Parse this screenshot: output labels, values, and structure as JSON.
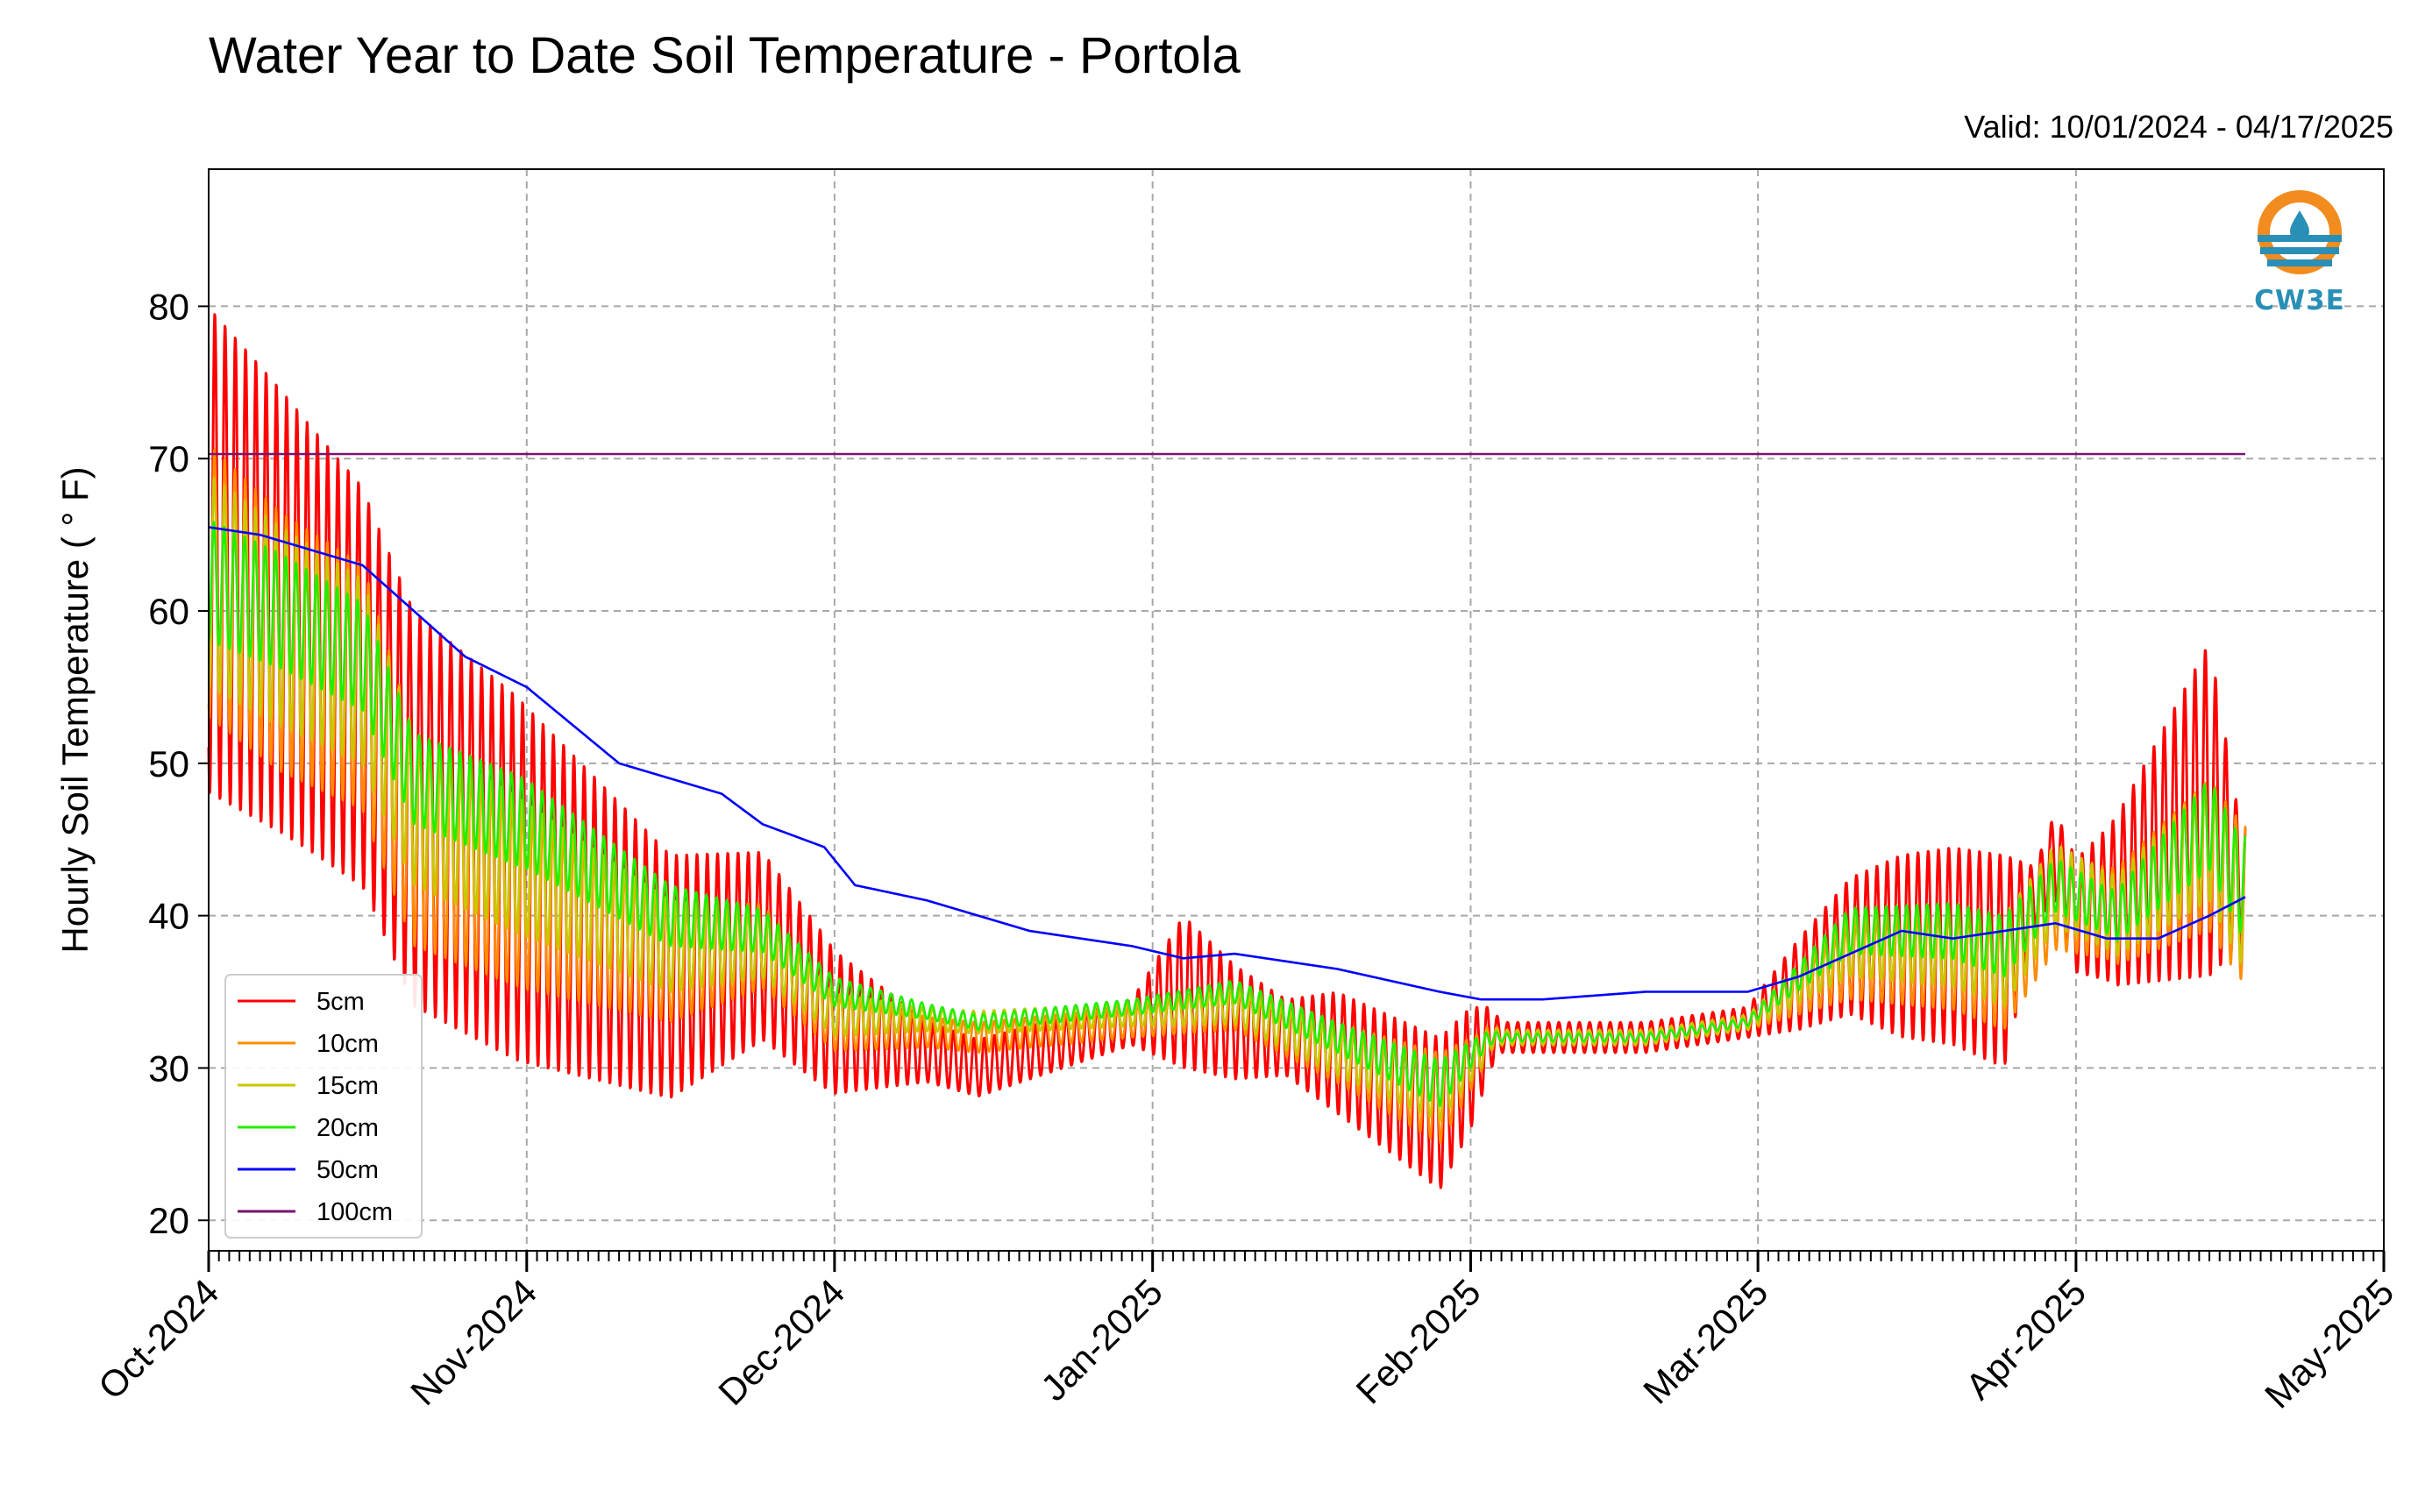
{
  "chart_data": {
    "type": "line",
    "title": "Water Year to Date Soil Temperature - Portola",
    "subtitle": "Valid: 10/01/2024 - 04/17/2025",
    "ylabel": "Hourly Soil Temperature ( ° F)",
    "xlabel": "",
    "ylim": [
      18,
      89
    ],
    "yticks": [
      20,
      30,
      40,
      50,
      60,
      70,
      80
    ],
    "xlim": [
      "2024-10-01",
      "2025-05-01"
    ],
    "xticks": [
      {
        "date": "2024-10-01",
        "label": "Oct-2024"
      },
      {
        "date": "2024-11-01",
        "label": "Nov-2024"
      },
      {
        "date": "2024-12-01",
        "label": "Dec-2024"
      },
      {
        "date": "2025-01-01",
        "label": "Jan-2025"
      },
      {
        "date": "2025-02-01",
        "label": "Feb-2025"
      },
      {
        "date": "2025-03-01",
        "label": "Mar-2025"
      },
      {
        "date": "2025-04-01",
        "label": "Apr-2025"
      },
      {
        "date": "2025-05-01",
        "label": "May-2025"
      }
    ],
    "grid": true,
    "legend_position": "lower-left",
    "logo": {
      "text": "CW3E",
      "colors": [
        "#f28c1e",
        "#2a8fb6"
      ]
    },
    "series": [
      {
        "name": "5cm",
        "color": "#ff0000",
        "mean": [
          [
            0,
            64
          ],
          [
            7,
            60
          ],
          [
            15,
            55
          ],
          [
            20,
            47
          ],
          [
            31,
            42
          ],
          [
            45,
            36
          ],
          [
            54,
            38
          ],
          [
            61,
            33
          ],
          [
            75,
            30
          ],
          [
            90,
            33
          ],
          [
            95,
            35
          ],
          [
            100,
            33
          ],
          [
            110,
            31
          ],
          [
            120,
            27
          ],
          [
            124,
            31
          ],
          [
            125,
            32
          ],
          [
            140,
            32
          ],
          [
            150,
            33
          ],
          [
            160,
            38
          ],
          [
            170,
            38
          ],
          [
            175,
            37
          ],
          [
            180,
            44
          ],
          [
            182,
            40
          ],
          [
            186,
            41
          ],
          [
            195,
            47
          ],
          [
            198,
            42
          ],
          [
            210,
            48
          ],
          [
            213,
            46
          ],
          [
            220,
            52
          ],
          [
            228,
            54
          ]
        ],
        "amp": [
          [
            0,
            32
          ],
          [
            10,
            28
          ],
          [
            16,
            26
          ],
          [
            20,
            26
          ],
          [
            30,
            24
          ],
          [
            45,
            16
          ],
          [
            60,
            10
          ],
          [
            70,
            4
          ],
          [
            90,
            3
          ],
          [
            95,
            10
          ],
          [
            105,
            5
          ],
          [
            110,
            8
          ],
          [
            120,
            10
          ],
          [
            123,
            8
          ],
          [
            126,
            2
          ],
          [
            150,
            2
          ],
          [
            155,
            6
          ],
          [
            165,
            12
          ],
          [
            175,
            14
          ],
          [
            178,
            4
          ],
          [
            185,
            10
          ],
          [
            195,
            22
          ],
          [
            198,
            8
          ],
          [
            210,
            24
          ],
          [
            212,
            10
          ],
          [
            215,
            20
          ],
          [
            228,
            26
          ]
        ]
      },
      {
        "name": "10cm",
        "color": "#ff8c00",
        "mean": [
          [
            0,
            62
          ],
          [
            7,
            58
          ],
          [
            15,
            55
          ],
          [
            20,
            45
          ],
          [
            31,
            41
          ],
          [
            45,
            37
          ],
          [
            54,
            38
          ],
          [
            61,
            33
          ],
          [
            75,
            32
          ],
          [
            90,
            33
          ],
          [
            100,
            34
          ],
          [
            110,
            31
          ],
          [
            120,
            28
          ],
          [
            124,
            31
          ],
          [
            125,
            32
          ],
          [
            140,
            32
          ],
          [
            150,
            33
          ],
          [
            160,
            37
          ],
          [
            170,
            37
          ],
          [
            175,
            36
          ],
          [
            180,
            41
          ],
          [
            186,
            40
          ],
          [
            195,
            44
          ],
          [
            198,
            41
          ],
          [
            210,
            45
          ],
          [
            213,
            44
          ],
          [
            220,
            48
          ],
          [
            228,
            52
          ]
        ],
        "amp": [
          [
            0,
            18
          ],
          [
            16,
            16
          ],
          [
            20,
            14
          ],
          [
            30,
            12
          ],
          [
            45,
            8
          ],
          [
            60,
            4
          ],
          [
            70,
            2
          ],
          [
            90,
            2
          ],
          [
            110,
            4
          ],
          [
            120,
            6
          ],
          [
            126,
            1
          ],
          [
            150,
            1
          ],
          [
            160,
            5
          ],
          [
            175,
            7
          ],
          [
            185,
            6
          ],
          [
            195,
            10
          ],
          [
            210,
            12
          ],
          [
            228,
            14
          ]
        ]
      },
      {
        "name": "15cm",
        "color": "#c8c800",
        "mean": [
          [
            0,
            62
          ],
          [
            7,
            59
          ],
          [
            15,
            56
          ],
          [
            20,
            47
          ],
          [
            31,
            43
          ],
          [
            45,
            38
          ],
          [
            54,
            38
          ],
          [
            61,
            33.5
          ],
          [
            75,
            33
          ],
          [
            90,
            33.5
          ],
          [
            100,
            34
          ],
          [
            110,
            31
          ],
          [
            120,
            28.5
          ],
          [
            124,
            31
          ],
          [
            125,
            32
          ],
          [
            140,
            32
          ],
          [
            150,
            33
          ],
          [
            160,
            38
          ],
          [
            170,
            38
          ],
          [
            175,
            37
          ],
          [
            180,
            42
          ],
          [
            186,
            40
          ],
          [
            195,
            45
          ],
          [
            198,
            41
          ],
          [
            210,
            45
          ],
          [
            213,
            44
          ],
          [
            220,
            48
          ],
          [
            228,
            51
          ]
        ],
        "amp": [
          [
            0,
            14
          ],
          [
            16,
            12
          ],
          [
            20,
            10
          ],
          [
            30,
            9
          ],
          [
            45,
            6
          ],
          [
            60,
            3
          ],
          [
            70,
            1.5
          ],
          [
            90,
            1.5
          ],
          [
            110,
            3
          ],
          [
            120,
            4
          ],
          [
            126,
            1
          ],
          [
            150,
            1
          ],
          [
            160,
            4
          ],
          [
            175,
            6
          ],
          [
            185,
            5
          ],
          [
            195,
            8
          ],
          [
            210,
            9
          ],
          [
            228,
            11
          ]
        ]
      },
      {
        "name": "20cm",
        "color": "#22ee00",
        "mean": [
          [
            0,
            62
          ],
          [
            7,
            60
          ],
          [
            15,
            57
          ],
          [
            20,
            49
          ],
          [
            31,
            46
          ],
          [
            45,
            40
          ],
          [
            54,
            39
          ],
          [
            61,
            35
          ],
          [
            75,
            33
          ],
          [
            90,
            34
          ],
          [
            100,
            35
          ],
          [
            110,
            32
          ],
          [
            120,
            29
          ],
          [
            124,
            31.5
          ],
          [
            125,
            32
          ],
          [
            140,
            32
          ],
          [
            150,
            33
          ],
          [
            160,
            39
          ],
          [
            170,
            39
          ],
          [
            175,
            38
          ],
          [
            180,
            42
          ],
          [
            186,
            40
          ],
          [
            195,
            46
          ],
          [
            198,
            42
          ],
          [
            210,
            45
          ],
          [
            213,
            44
          ],
          [
            220,
            48
          ],
          [
            228,
            50
          ]
        ],
        "amp": [
          [
            0,
            8
          ],
          [
            16,
            7
          ],
          [
            20,
            6
          ],
          [
            30,
            6
          ],
          [
            45,
            4
          ],
          [
            60,
            2
          ],
          [
            70,
            1
          ],
          [
            90,
            1
          ],
          [
            110,
            2
          ],
          [
            120,
            3
          ],
          [
            126,
            0.5
          ],
          [
            150,
            0.5
          ],
          [
            160,
            3
          ],
          [
            175,
            4
          ],
          [
            185,
            3
          ],
          [
            195,
            6
          ],
          [
            210,
            7
          ],
          [
            228,
            8
          ]
        ]
      },
      {
        "name": "50cm",
        "color": "#0000ff",
        "mean": [
          [
            0,
            65.5
          ],
          [
            5,
            65
          ],
          [
            15,
            63
          ],
          [
            20,
            60
          ],
          [
            25,
            57
          ],
          [
            31,
            55
          ],
          [
            40,
            50
          ],
          [
            50,
            48
          ],
          [
            54,
            46
          ],
          [
            60,
            44.5
          ],
          [
            63,
            42
          ],
          [
            70,
            41
          ],
          [
            80,
            39
          ],
          [
            90,
            38
          ],
          [
            95,
            37.2
          ],
          [
            100,
            37.5
          ],
          [
            105,
            37
          ],
          [
            110,
            36.5
          ],
          [
            120,
            35
          ],
          [
            124,
            34.5
          ],
          [
            130,
            34.5
          ],
          [
            140,
            35
          ],
          [
            150,
            35
          ],
          [
            155,
            36
          ],
          [
            165,
            39
          ],
          [
            170,
            38.5
          ],
          [
            180,
            39.5
          ],
          [
            185,
            38.5
          ],
          [
            190,
            38.5
          ],
          [
            195,
            40
          ],
          [
            205,
            43.5
          ],
          [
            210,
            43
          ],
          [
            213,
            42
          ],
          [
            217,
            42.2
          ],
          [
            222,
            44
          ],
          [
            228,
            48
          ]
        ],
        "amp": [
          [
            0,
            0
          ],
          [
            228,
            0
          ]
        ]
      },
      {
        "name": "100cm",
        "color": "#7a1270",
        "mean": [
          [
            0,
            70.3
          ],
          [
            228,
            70.3
          ]
        ],
        "amp": [
          [
            0,
            0
          ],
          [
            228,
            0
          ]
        ]
      }
    ]
  }
}
